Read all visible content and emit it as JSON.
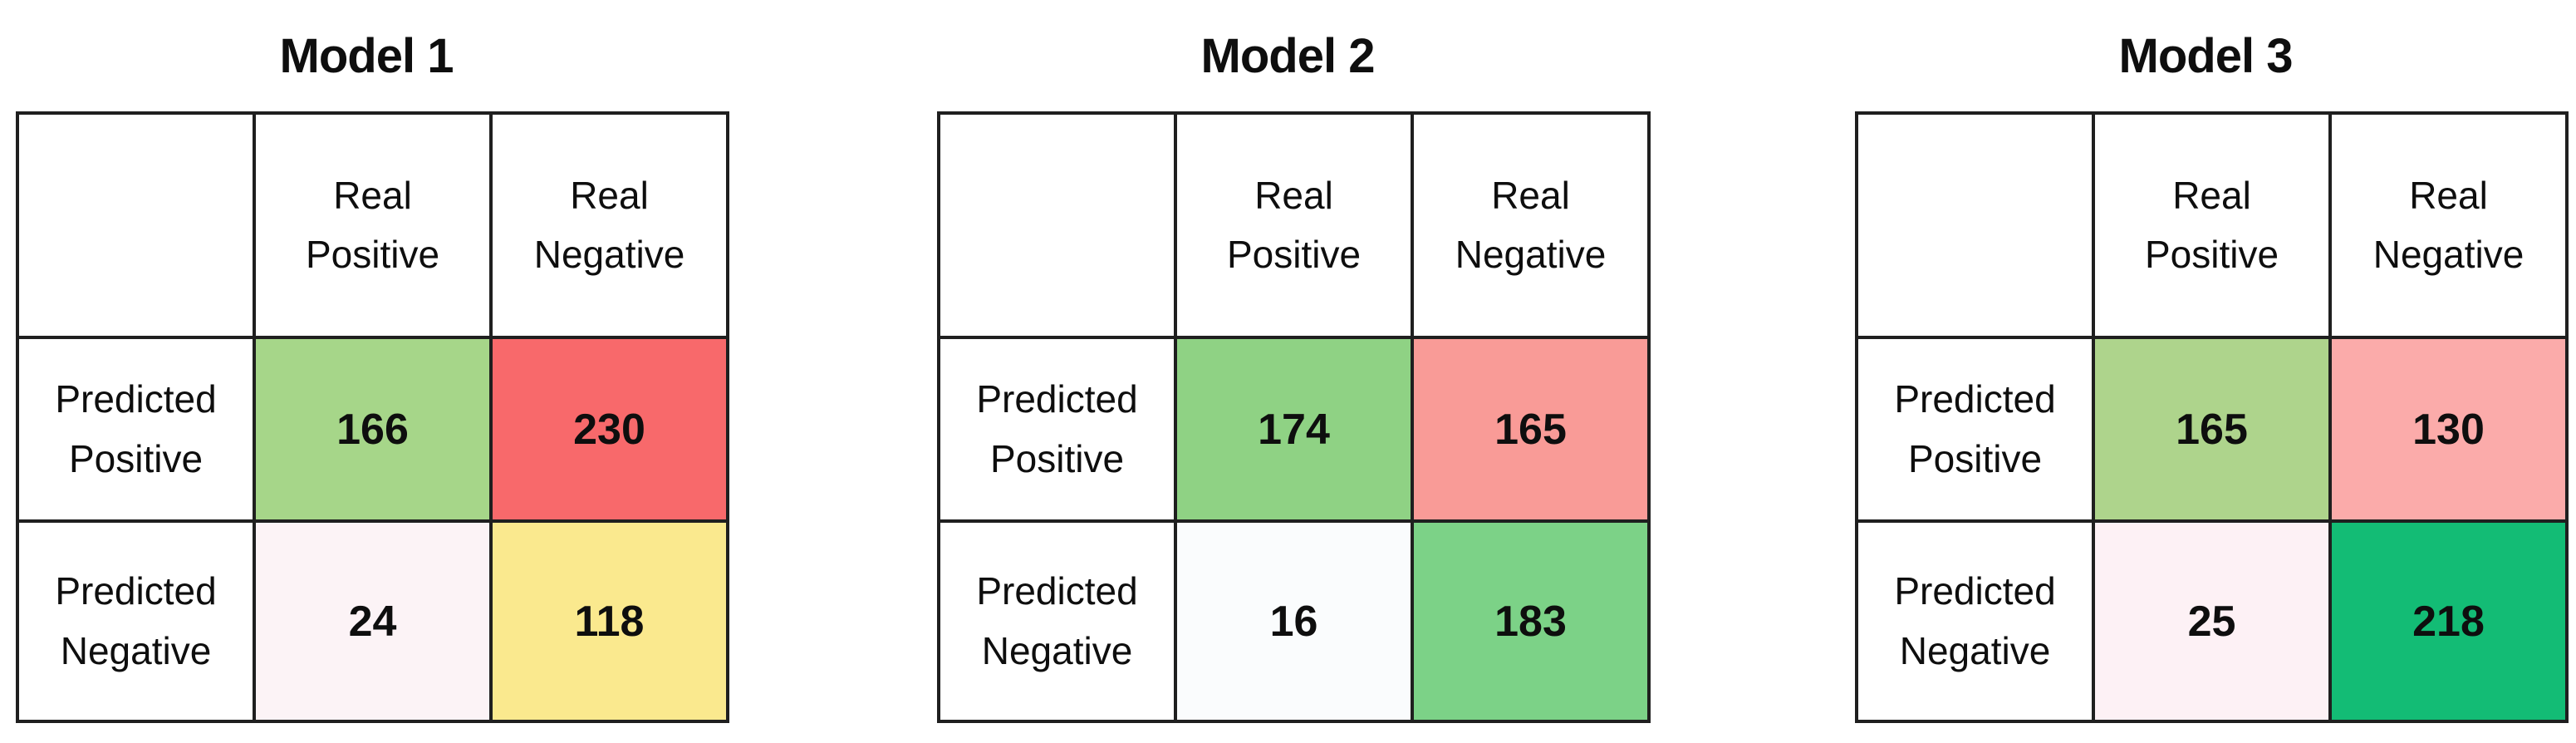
{
  "style": {
    "background": "#ffffff",
    "border_color": "#1f1f1f",
    "text_color": "#0e0e0e"
  },
  "labels": {
    "col_positive_line1": "Real",
    "col_positive_line2": "Positive",
    "col_negative_line1": "Real",
    "col_negative_line2": "Negative",
    "row_positive_line1": "Predicted",
    "row_positive_line2": "Positive",
    "row_negative_line1": "Predicted",
    "row_negative_line2": "Negative"
  },
  "chart_data": [
    {
      "type": "heatmap",
      "title": "Model 1",
      "columns": [
        "Real Positive",
        "Real Negative"
      ],
      "rows": [
        "Predicted Positive",
        "Predicted Negative"
      ],
      "values": [
        [
          166,
          230
        ],
        [
          24,
          118
        ]
      ],
      "cell_colors": [
        [
          "#a6d689",
          "#f8696b"
        ],
        [
          "#fcf3f6",
          "#fae98e"
        ]
      ]
    },
    {
      "type": "heatmap",
      "title": "Model 2",
      "columns": [
        "Real Positive",
        "Real Negative"
      ],
      "rows": [
        "Predicted Positive",
        "Predicted Negative"
      ],
      "values": [
        [
          174,
          165
        ],
        [
          16,
          183
        ]
      ],
      "cell_colors": [
        [
          "#8fd284",
          "#f99b97"
        ],
        [
          "#fafcfd",
          "#7cd287"
        ]
      ]
    },
    {
      "type": "heatmap",
      "title": "Model 3",
      "columns": [
        "Real Positive",
        "Real Negative"
      ],
      "rows": [
        "Predicted Positive",
        "Predicted Negative"
      ],
      "values": [
        [
          165,
          130
        ],
        [
          25,
          218
        ]
      ],
      "cell_colors": [
        [
          "#aed48c",
          "#fbabaa"
        ],
        [
          "#fdf1f5",
          "#13bc75"
        ]
      ]
    }
  ]
}
